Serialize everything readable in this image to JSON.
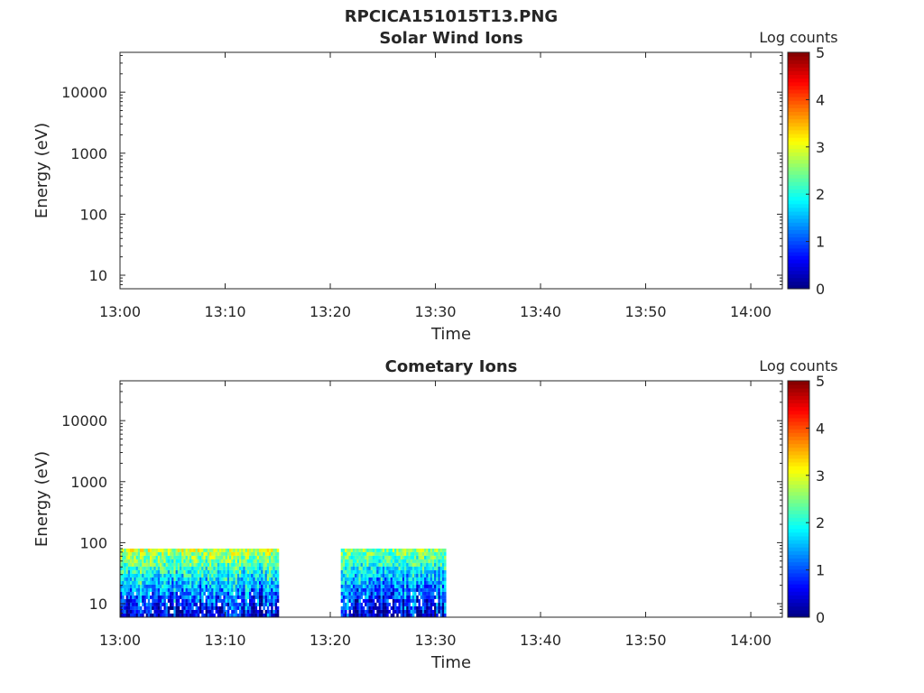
{
  "figure": {
    "title": "RPCICA151015T13.PNG"
  },
  "chart_data": [
    {
      "type": "heatmap",
      "title": "Solar Wind Ions",
      "xlabel": "Time",
      "ylabel": "Energy (eV)",
      "x_ticks": [
        "13:00",
        "13:10",
        "13:20",
        "13:30",
        "13:40",
        "13:50",
        "14:00"
      ],
      "xlim": [
        "13:00",
        "14:03"
      ],
      "y_scale": "log",
      "y_ticks": [
        10,
        100,
        1000,
        10000
      ],
      "ylim": [
        6,
        45000
      ],
      "colorbar": {
        "label": "Log counts",
        "ticks": [
          0,
          1,
          2,
          3,
          4,
          5
        ],
        "range": [
          0,
          5
        ],
        "colormap": "jet"
      },
      "data_blocks": []
    },
    {
      "type": "heatmap",
      "title": "Cometary Ions",
      "xlabel": "Time",
      "ylabel": "Energy (eV)",
      "x_ticks": [
        "13:00",
        "13:10",
        "13:20",
        "13:30",
        "13:40",
        "13:50",
        "14:00"
      ],
      "xlim": [
        "13:00",
        "14:03"
      ],
      "y_scale": "log",
      "y_ticks": [
        10,
        100,
        1000,
        10000
      ],
      "ylim": [
        6,
        45000
      ],
      "colorbar": {
        "label": "Log counts",
        "ticks": [
          0,
          1,
          2,
          3,
          4,
          5
        ],
        "range": [
          0,
          5
        ],
        "colormap": "jet"
      },
      "data_blocks": [
        {
          "t_start": "13:00",
          "t_end": "13:15",
          "energy_min": 6,
          "energy_max": 80,
          "log_counts_low": 0.3,
          "log_counts_high": 2.8
        },
        {
          "t_start": "13:21",
          "t_end": "13:31",
          "energy_min": 6,
          "energy_max": 80,
          "log_counts_low": 0.3,
          "log_counts_high": 2.5
        }
      ]
    }
  ]
}
